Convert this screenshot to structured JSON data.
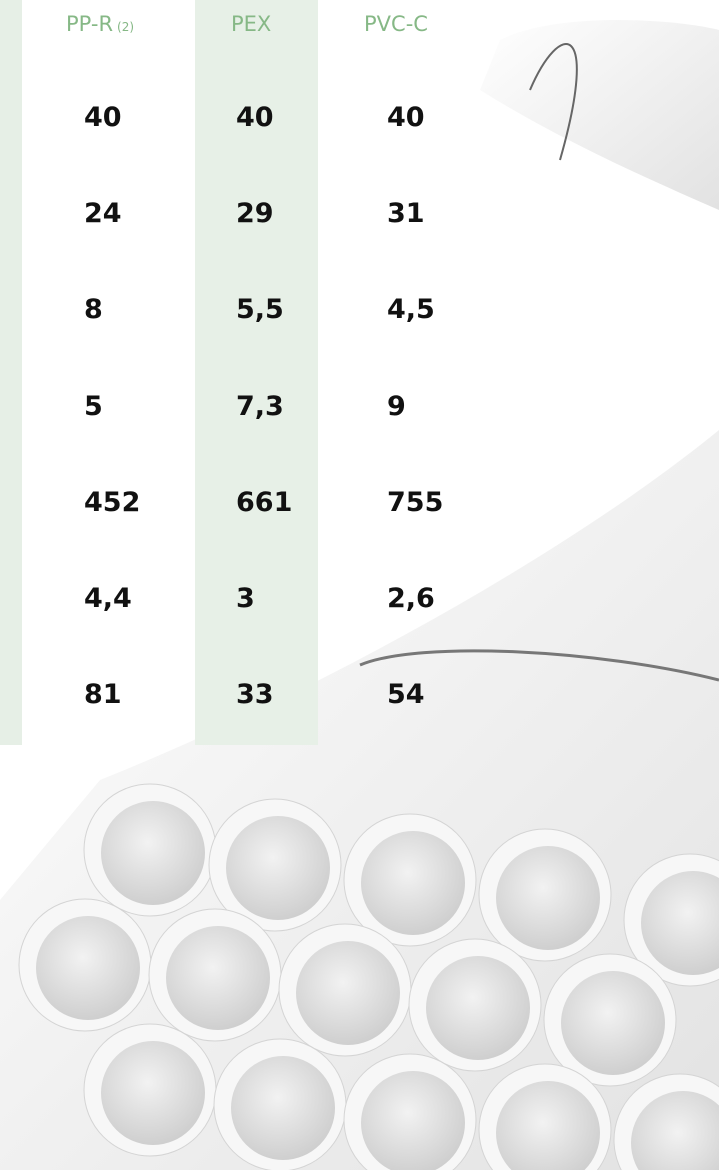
{
  "table": {
    "headers": [
      {
        "label": "PP-R",
        "note": "(2)"
      },
      {
        "label": "PEX"
      },
      {
        "label": "PVC-C"
      }
    ],
    "rows": [
      [
        "40",
        "40",
        "40"
      ],
      [
        "24",
        "29",
        "31"
      ],
      [
        "8",
        "5,5",
        "4,5"
      ],
      [
        "5",
        "7,3",
        "9"
      ],
      [
        "452",
        "661",
        "755"
      ],
      [
        "4,4",
        "3",
        "2,6"
      ],
      [
        "81",
        "33",
        "54"
      ]
    ]
  }
}
